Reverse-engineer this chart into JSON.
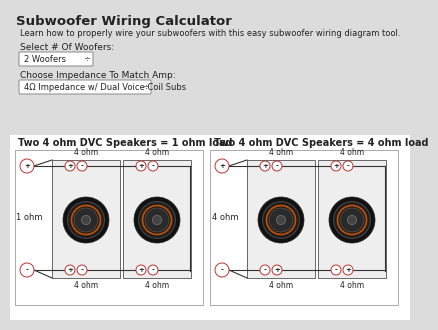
{
  "title": "Subwoofer Wiring Calculator",
  "subtitle": "Learn how to properly wire your subwoofers with this easy subwoofer wiring diagram tool.",
  "label_woofers": "Select # Of Woofers:",
  "dropdown_woofers": "2 Woofers",
  "label_impedance": "Choose Impedance To Match Amp:",
  "dropdown_impedance": "4Ω Impedance w/ Dual Voice Coil Subs",
  "diagram1_title": "Two 4 ohm DVC Speakers = 1 ohm load",
  "diagram2_title": "Two 4 ohm DVC Speakers = 4 ohm load",
  "diagram1_side_label": "1 ohm",
  "diagram2_side_label": "4 ohm",
  "bg_color": "#dcdcdc",
  "diagram_bg": "#ffffff",
  "text_color": "#222222",
  "title_fontsize": 9.5,
  "subtitle_fontsize": 6.0,
  "label_fontsize": 6.5,
  "dropdown_fontsize": 6.0,
  "diagram_title_fontsize": 7.0,
  "ohm_fontsize": 5.5,
  "side_label_fontsize": 6.0,
  "terminal_fontsize": 5.0
}
